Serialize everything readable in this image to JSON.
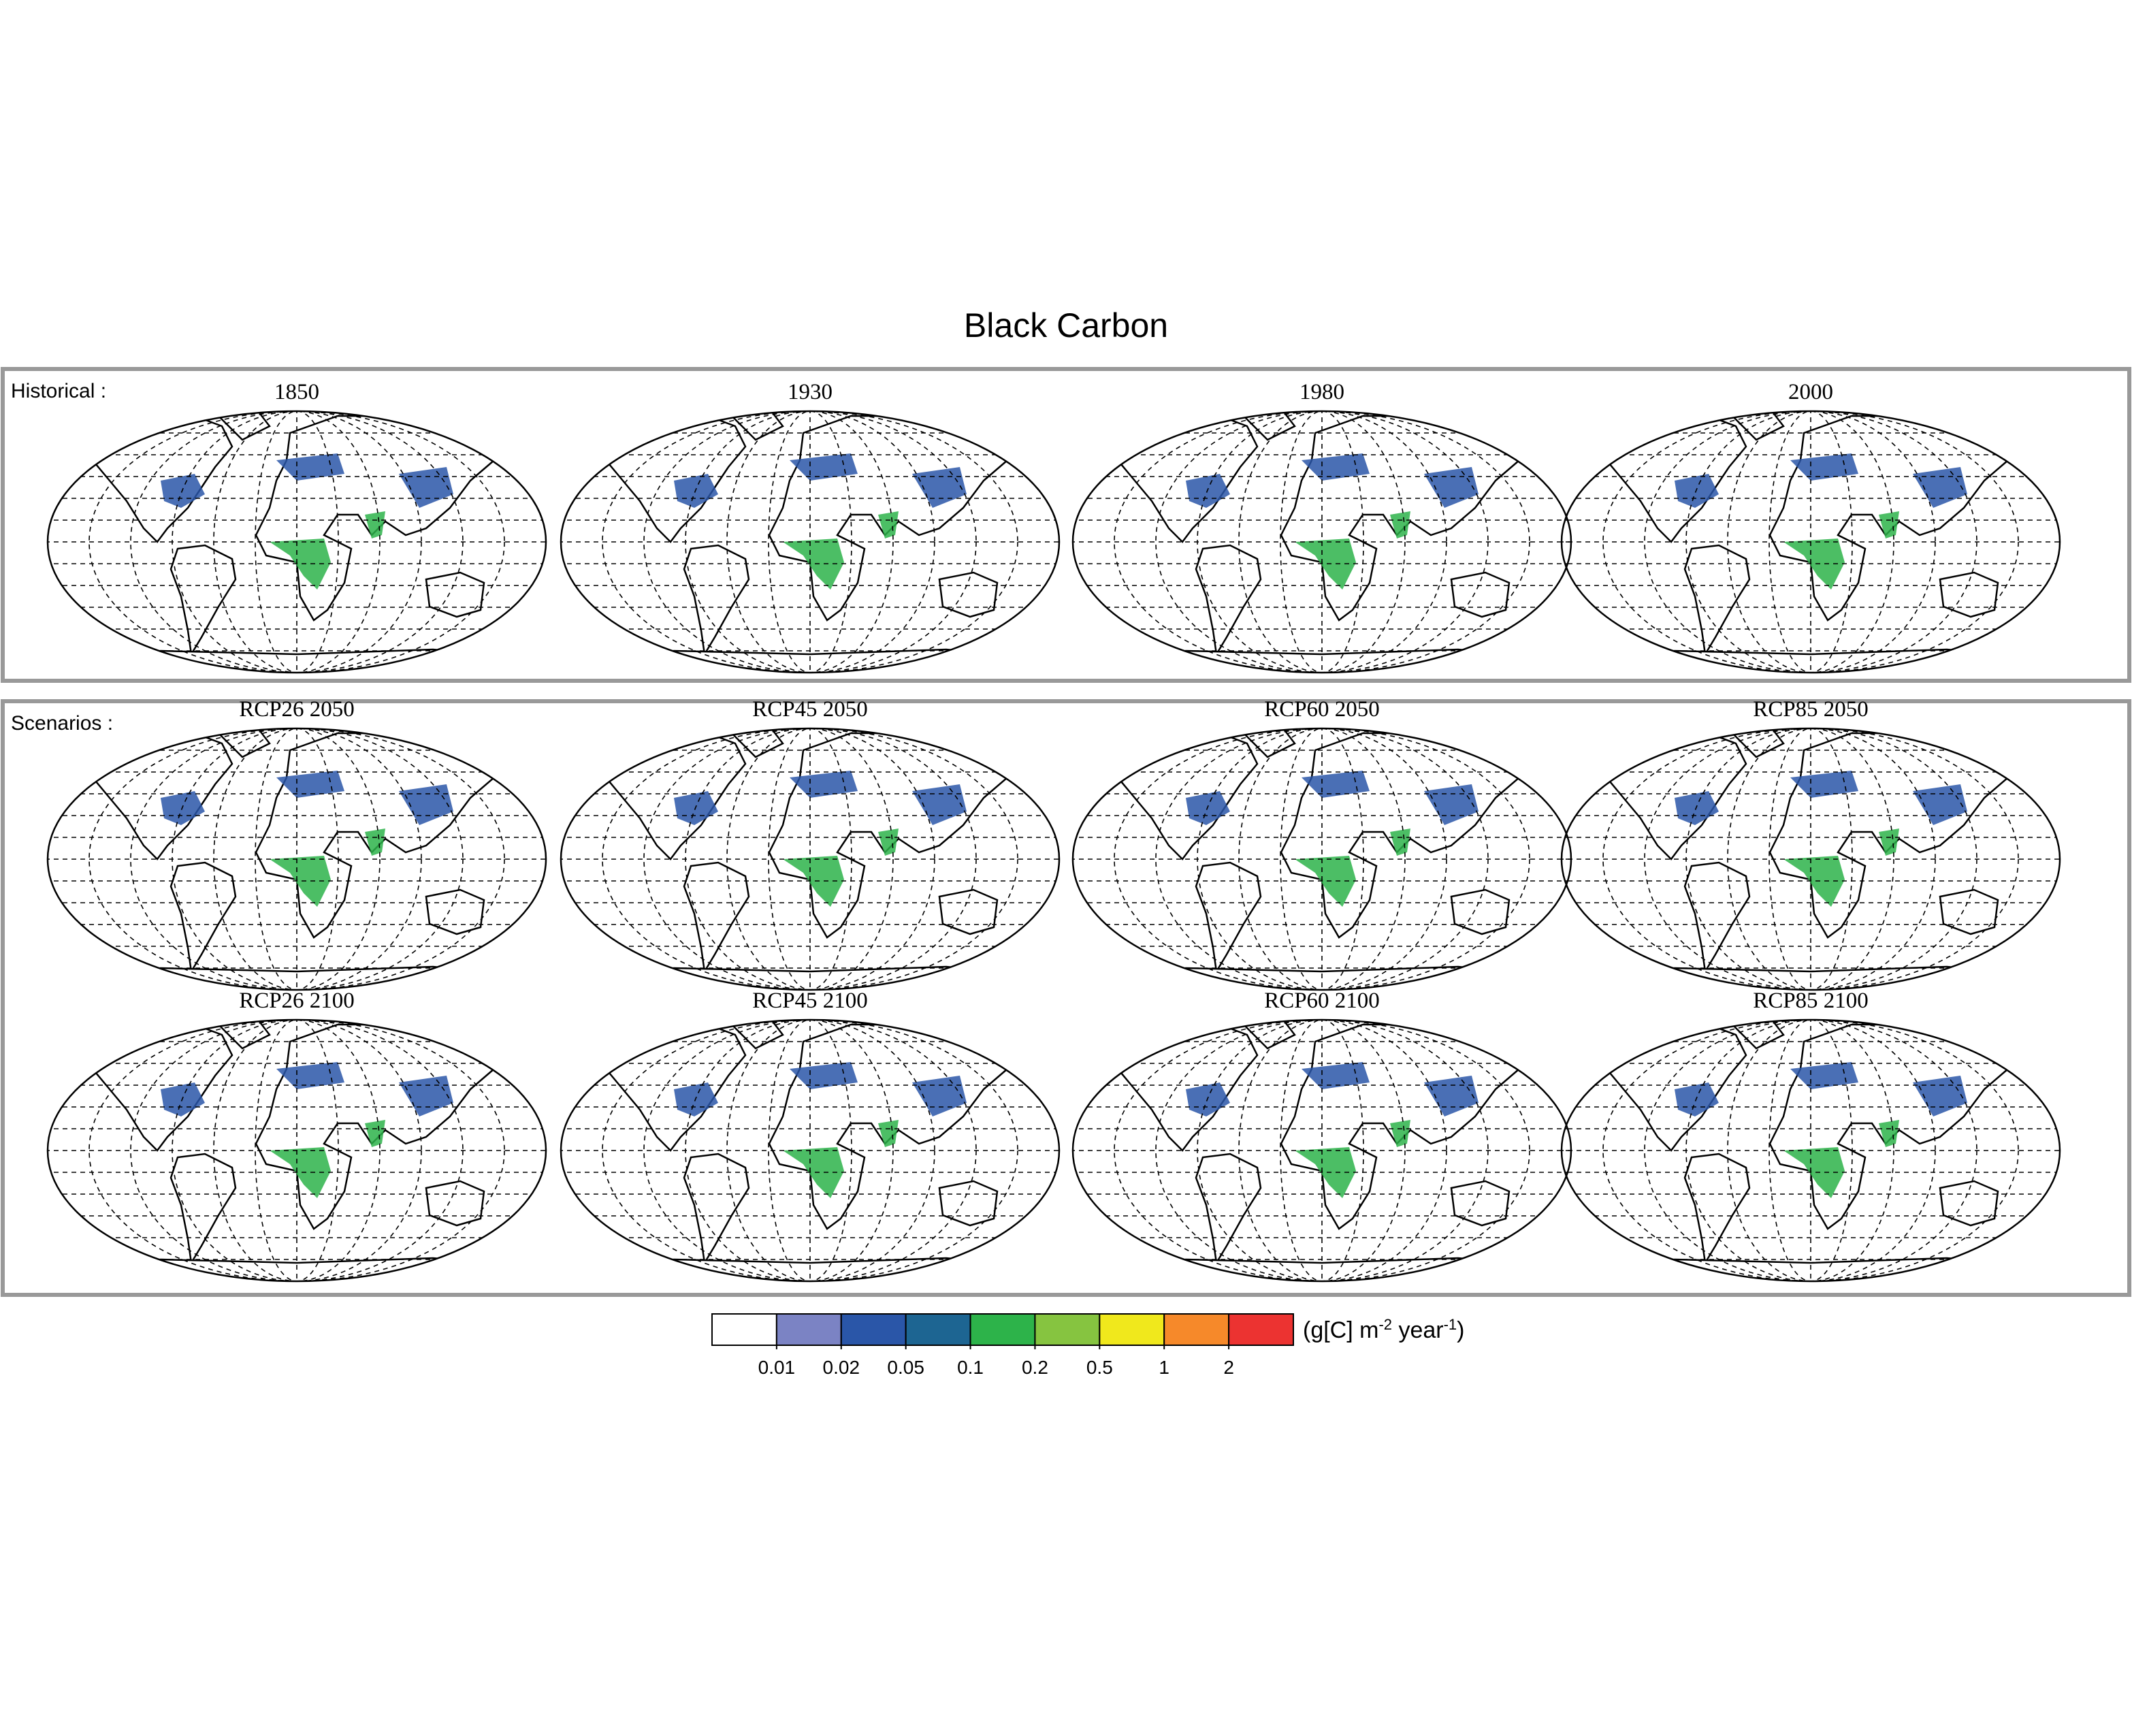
{
  "title": "Black Carbon",
  "groups": [
    {
      "label": "Historical :",
      "panels": [
        "1850",
        "1930",
        "1980",
        "2000"
      ]
    },
    {
      "label": "Scenarios :",
      "panels": [
        "RCP26 2050",
        "RCP45 2050",
        "RCP60 2050",
        "RCP85 2050",
        "RCP26 2100",
        "RCP45 2100",
        "RCP60 2100",
        "RCP85 2100"
      ]
    }
  ],
  "colorbar": {
    "colors": [
      "#ffffff",
      "#7b83c4",
      "#2a56a8",
      "#1d6592",
      "#2db34a",
      "#86c440",
      "#f0e81c",
      "#f6892a",
      "#ec3331"
    ],
    "ticks": [
      0.01,
      0.02,
      0.05,
      0.1,
      0.2,
      0.5,
      1,
      2
    ],
    "unit": [
      "(g[C] m",
      "-2",
      " year",
      "-1",
      ")"
    ]
  }
}
